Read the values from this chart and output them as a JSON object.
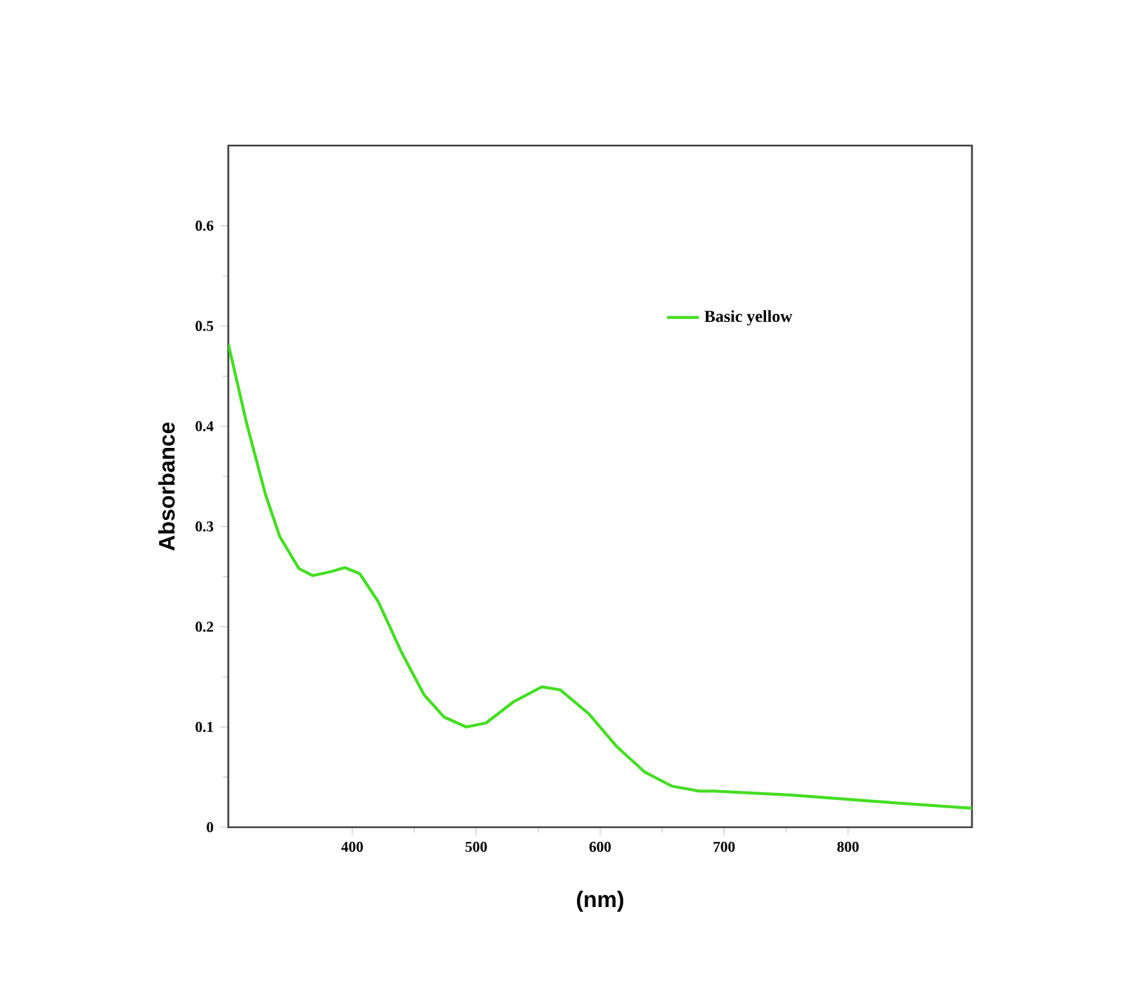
{
  "chart_data": {
    "type": "line",
    "xlabel": "(nm)",
    "ylabel": "Absorbance",
    "xlim": [
      300,
      900
    ],
    "ylim": [
      0,
      0.68
    ],
    "xticks": [
      400,
      500,
      600,
      700,
      800
    ],
    "yticks": [
      0,
      0.1,
      0.2,
      0.3,
      0.4,
      0.5,
      0.6
    ],
    "legend": "top right",
    "grid": false,
    "marker": "none",
    "line_style": "solid",
    "series": [
      {
        "name": "Basic yellow",
        "color": "#44dd22",
        "x": [
          300,
          315,
          330,
          341.5,
          357,
          368,
          383,
          394,
          406,
          421,
          440,
          458,
          474,
          492,
          508,
          530,
          553,
          568,
          591,
          613,
          636,
          658,
          680,
          692,
          755,
          830,
          900
        ],
        "values": [
          0.482,
          0.402,
          0.332,
          0.29,
          0.258,
          0.251,
          0.255,
          0.259,
          0.253,
          0.225,
          0.174,
          0.132,
          0.11,
          0.1,
          0.104,
          0.125,
          0.14,
          0.137,
          0.113,
          0.081,
          0.055,
          0.041,
          0.036,
          0.036,
          0.032,
          0.025,
          0.019
        ]
      }
    ]
  }
}
